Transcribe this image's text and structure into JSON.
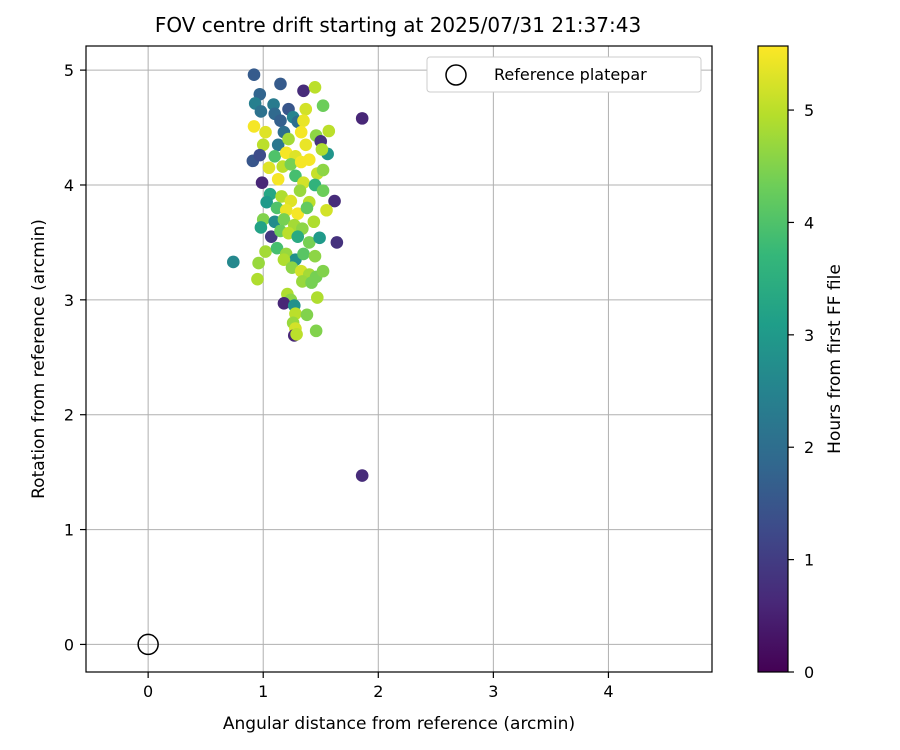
{
  "chart_data": {
    "type": "scatter",
    "title": "FOV centre drift starting at 2025/07/31 21:37:43",
    "xlabel": "Angular distance from reference (arcmin)",
    "ylabel": "Rotation from reference (arcmin)",
    "xlim": [
      -0.54,
      4.9
    ],
    "ylim": [
      -0.24,
      5.21
    ],
    "xticks": [
      0,
      1,
      2,
      3,
      4
    ],
    "yticks": [
      0,
      1,
      2,
      3,
      4,
      5
    ],
    "grid": true,
    "legend": {
      "position": "top-right",
      "entries": [
        "Reference platepar"
      ]
    },
    "reference_point": {
      "label": "Reference platepar",
      "x": 0,
      "y": 0,
      "marker": "open-circle"
    },
    "colorbar": {
      "label": "Hours from first FF file",
      "min": 0,
      "max": 5.57,
      "ticks": [
        0,
        1,
        2,
        3,
        4,
        5
      ],
      "colormap": "viridis"
    },
    "colormap_stops": [
      "#440154",
      "#482878",
      "#3e4989",
      "#31688e",
      "#26828e",
      "#1f9e89",
      "#35b779",
      "#6ece58",
      "#b5de2b",
      "#fde725"
    ],
    "series": [
      {
        "marker": "filled-circle",
        "points": [
          [
            0.92,
            4.96,
            1.6
          ],
          [
            1.15,
            4.88,
            1.6
          ],
          [
            1.35,
            4.82,
            0.7
          ],
          [
            1.45,
            4.85,
            5.0
          ],
          [
            0.97,
            4.79,
            1.8
          ],
          [
            0.93,
            4.71,
            2.4
          ],
          [
            1.09,
            4.7,
            2.3
          ],
          [
            1.22,
            4.66,
            1.5
          ],
          [
            1.37,
            4.66,
            5.2
          ],
          [
            1.52,
            4.69,
            4.3
          ],
          [
            0.98,
            4.64,
            2.1
          ],
          [
            1.1,
            4.62,
            1.9
          ],
          [
            1.26,
            4.59,
            2.5
          ],
          [
            1.15,
            4.56,
            1.7
          ],
          [
            1.3,
            4.55,
            2.0
          ],
          [
            1.35,
            4.56,
            5.4
          ],
          [
            1.86,
            4.58,
            0.6
          ],
          [
            0.92,
            4.51,
            5.5
          ],
          [
            1.02,
            4.46,
            5.3
          ],
          [
            1.18,
            4.46,
            2.0
          ],
          [
            1.33,
            4.46,
            5.5
          ],
          [
            1.46,
            4.43,
            4.6
          ],
          [
            1.57,
            4.47,
            5.0
          ],
          [
            1.0,
            4.35,
            5.0
          ],
          [
            1.13,
            4.35,
            2.2
          ],
          [
            1.22,
            4.4,
            4.8
          ],
          [
            1.37,
            4.35,
            5.4
          ],
          [
            1.5,
            4.38,
            0.8
          ],
          [
            0.91,
            4.21,
            1.5
          ],
          [
            0.97,
            4.26,
            1.3
          ],
          [
            1.1,
            4.25,
            4.0
          ],
          [
            1.2,
            4.28,
            5.5
          ],
          [
            1.28,
            4.25,
            5.3
          ],
          [
            1.4,
            4.22,
            5.5
          ],
          [
            1.56,
            4.27,
            2.9
          ],
          [
            1.51,
            4.31,
            4.9
          ],
          [
            1.05,
            4.15,
            5.3
          ],
          [
            1.17,
            4.16,
            5.0
          ],
          [
            1.24,
            4.18,
            4.4
          ],
          [
            1.33,
            4.2,
            5.5
          ],
          [
            1.47,
            4.1,
            5.1
          ],
          [
            1.52,
            4.13,
            4.6
          ],
          [
            0.99,
            4.02,
            0.6
          ],
          [
            1.13,
            4.05,
            5.5
          ],
          [
            1.28,
            4.08,
            3.9
          ],
          [
            1.35,
            4.02,
            5.2
          ],
          [
            1.45,
            4.0,
            3.6
          ],
          [
            1.52,
            3.95,
            4.3
          ],
          [
            1.06,
            3.92,
            3.3
          ],
          [
            1.16,
            3.9,
            4.9
          ],
          [
            1.24,
            3.86,
            5.3
          ],
          [
            1.32,
            3.95,
            4.7
          ],
          [
            1.4,
            3.85,
            5.0
          ],
          [
            1.62,
            3.86,
            0.7
          ],
          [
            1.03,
            3.85,
            3.0
          ],
          [
            1.12,
            3.8,
            4.0
          ],
          [
            1.2,
            3.78,
            5.4
          ],
          [
            1.3,
            3.75,
            5.5
          ],
          [
            1.38,
            3.8,
            4.2
          ],
          [
            1.55,
            3.78,
            5.2
          ],
          [
            1.0,
            3.7,
            4.5
          ],
          [
            1.1,
            3.68,
            2.7
          ],
          [
            1.18,
            3.7,
            4.4
          ],
          [
            1.27,
            3.65,
            4.8
          ],
          [
            1.34,
            3.62,
            4.6
          ],
          [
            1.44,
            3.68,
            4.9
          ],
          [
            0.98,
            3.63,
            3.2
          ],
          [
            1.07,
            3.55,
            0.9
          ],
          [
            1.15,
            3.6,
            4.3
          ],
          [
            1.22,
            3.58,
            5.0
          ],
          [
            1.3,
            3.55,
            3.4
          ],
          [
            1.4,
            3.5,
            4.4
          ],
          [
            1.49,
            3.54,
            3.0
          ],
          [
            1.64,
            3.5,
            0.8
          ],
          [
            1.02,
            3.42,
            4.8
          ],
          [
            1.12,
            3.45,
            3.9
          ],
          [
            1.2,
            3.4,
            4.7
          ],
          [
            1.28,
            3.35,
            2.8
          ],
          [
            1.35,
            3.4,
            4.1
          ],
          [
            1.45,
            3.38,
            4.6
          ],
          [
            0.74,
            3.33,
            2.6
          ],
          [
            0.96,
            3.32,
            4.7
          ],
          [
            1.18,
            3.35,
            4.9
          ],
          [
            1.25,
            3.28,
            4.6
          ],
          [
            1.33,
            3.25,
            5.2
          ],
          [
            1.4,
            3.22,
            4.8
          ],
          [
            1.46,
            3.2,
            4.4
          ],
          [
            1.52,
            3.25,
            4.5
          ],
          [
            0.95,
            3.18,
            4.9
          ],
          [
            1.34,
            3.16,
            4.7
          ],
          [
            1.42,
            3.15,
            4.4
          ],
          [
            1.21,
            3.05,
            4.9
          ],
          [
            1.24,
            3.0,
            4.6
          ],
          [
            1.47,
            3.02,
            4.9
          ],
          [
            1.18,
            2.97,
            0.6
          ],
          [
            1.27,
            2.95,
            2.8
          ],
          [
            1.28,
            2.88,
            5.0
          ],
          [
            1.38,
            2.87,
            4.5
          ],
          [
            1.26,
            2.8,
            4.7
          ],
          [
            1.28,
            2.75,
            5.2
          ],
          [
            1.46,
            2.73,
            4.5
          ],
          [
            1.27,
            2.69,
            0.6
          ],
          [
            1.29,
            2.7,
            5.0
          ],
          [
            1.86,
            1.47,
            0.7
          ]
        ]
      }
    ]
  }
}
